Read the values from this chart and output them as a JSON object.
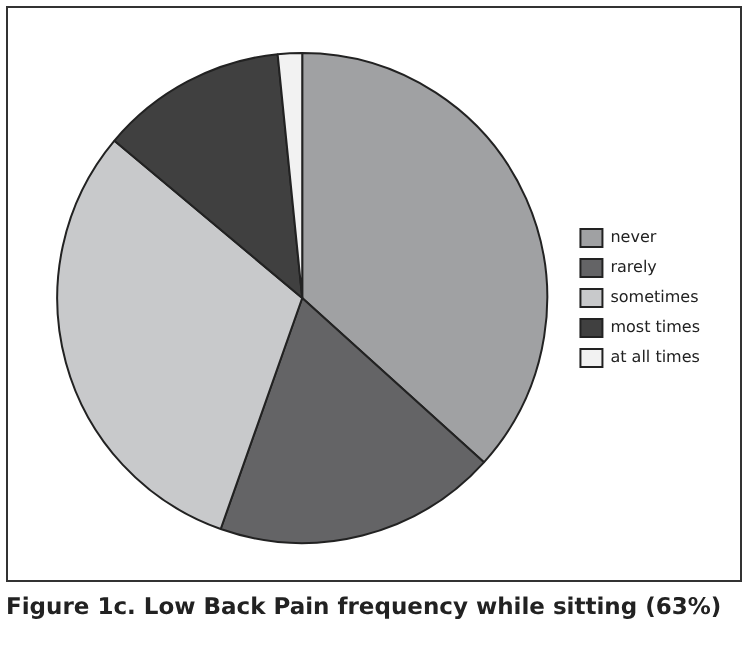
{
  "chart_data": {
    "type": "pie",
    "title": "Figure 1c. Low Back Pain frequency while sitting (63%)",
    "categories": [
      "never",
      "rarely",
      "sometimes",
      "most times",
      "at all times"
    ],
    "values": [
      36.7,
      18.7,
      30.7,
      12.3,
      1.6
    ],
    "colors": [
      "#a0a1a3",
      "#646466",
      "#c8c9cb",
      "#404040",
      "#f2f2f2"
    ],
    "legend": "right"
  }
}
